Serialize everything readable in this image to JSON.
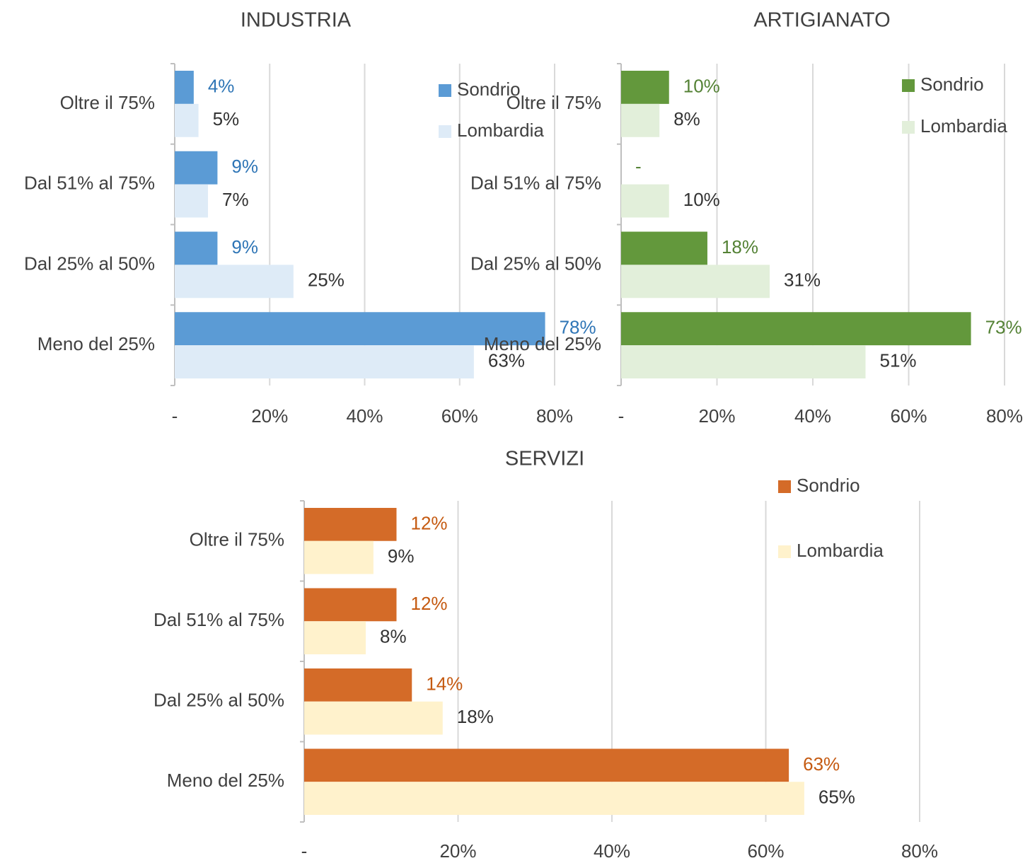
{
  "chart_data": [
    {
      "type": "bar",
      "orientation": "horizontal",
      "title": "INDUSTRIA",
      "categories": [
        "Oltre il 75%",
        "Dal 51% al 75%",
        "Dal 25% al 50%",
        "Meno del 25%"
      ],
      "series": [
        {
          "name": "Sondrio",
          "color": "#5b9bd5",
          "label_color": "#2e75b6",
          "values": [
            4,
            9,
            9,
            78
          ],
          "value_labels": [
            "4%",
            "9%",
            "9%",
            "78%"
          ]
        },
        {
          "name": "Lombardia",
          "color": "#deebf7",
          "label_color": "#333333",
          "values": [
            5,
            7,
            25,
            63
          ],
          "value_labels": [
            "5%",
            "7%",
            "25%",
            "63%"
          ]
        }
      ],
      "xlim": [
        0,
        80
      ],
      "xticks": [
        {
          "value": 0,
          "label": "-"
        },
        {
          "value": 20,
          "label": "20%"
        },
        {
          "value": 40,
          "label": "40%"
        },
        {
          "value": 60,
          "label": "60%"
        },
        {
          "value": 80,
          "label": "80%"
        }
      ],
      "grid": true,
      "legend": "upper right"
    },
    {
      "type": "bar",
      "orientation": "horizontal",
      "title": "ARTIGIANATO",
      "categories": [
        "Oltre il 75%",
        "Dal 51% al 75%",
        "Dal 25% al 50%",
        "Meno del 25%"
      ],
      "series": [
        {
          "name": "Sondrio",
          "color": "#63983c",
          "label_color": "#548235",
          "values": [
            10,
            0,
            18,
            73
          ],
          "value_labels": [
            "10%",
            "-",
            "18%",
            "73%"
          ]
        },
        {
          "name": "Lombardia",
          "color": "#e2efda",
          "label_color": "#333333",
          "values": [
            8,
            10,
            31,
            51
          ],
          "value_labels": [
            "8%",
            "10%",
            "31%",
            "51%"
          ]
        }
      ],
      "xlim": [
        0,
        80
      ],
      "xticks": [
        {
          "value": 0,
          "label": "-"
        },
        {
          "value": 20,
          "label": "20%"
        },
        {
          "value": 40,
          "label": "40%"
        },
        {
          "value": 60,
          "label": "60%"
        },
        {
          "value": 80,
          "label": "80%"
        }
      ],
      "grid": true,
      "legend": "upper right"
    },
    {
      "type": "bar",
      "orientation": "horizontal",
      "title": "SERVIZI",
      "categories": [
        "Oltre il 75%",
        "Dal 51% al 75%",
        "Dal 25% al 50%",
        "Meno del 25%"
      ],
      "series": [
        {
          "name": "Sondrio",
          "color": "#d46b28",
          "label_color": "#c55a11",
          "values": [
            12,
            12,
            14,
            63
          ],
          "value_labels": [
            "12%",
            "12%",
            "14%",
            "63%"
          ]
        },
        {
          "name": "Lombardia",
          "color": "#fff2cc",
          "label_color": "#333333",
          "values": [
            9,
            8,
            18,
            65
          ],
          "value_labels": [
            "9%",
            "8%",
            "18%",
            "65%"
          ]
        }
      ],
      "xlim": [
        0,
        80
      ],
      "xticks": [
        {
          "value": 0,
          "label": "-"
        },
        {
          "value": 20,
          "label": "20%"
        },
        {
          "value": 40,
          "label": "40%"
        },
        {
          "value": 60,
          "label": "60%"
        },
        {
          "value": 80,
          "label": "80%"
        }
      ],
      "grid": true,
      "legend": "upper right"
    }
  ]
}
